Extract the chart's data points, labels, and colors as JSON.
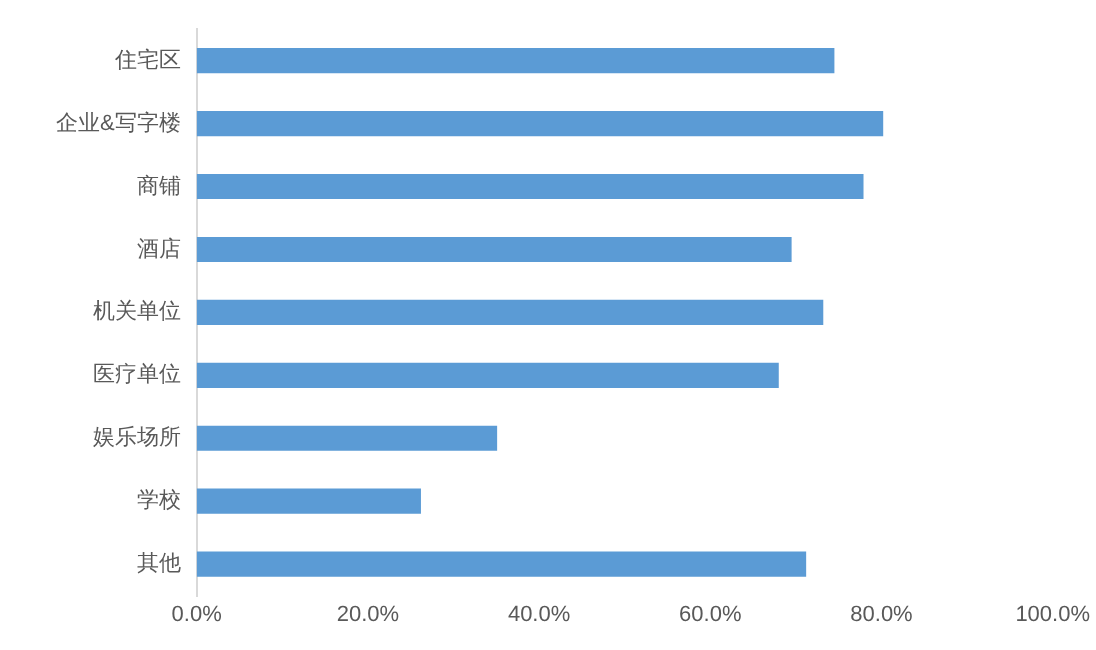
{
  "chart_data": {
    "type": "bar",
    "orientation": "horizontal",
    "categories": [
      "住宅区",
      "企业&写字楼",
      "商铺",
      "酒店",
      "机关单位",
      "医疗单位",
      "娱乐场所",
      "学校",
      "其他"
    ],
    "values": [
      74.5,
      80.2,
      77.9,
      69.5,
      73.2,
      68.0,
      35.1,
      26.2,
      71.2
    ],
    "color": "#5b9bd5",
    "xlim": [
      0,
      100
    ],
    "xticks": [
      {
        "value": 0,
        "label": "0.0%"
      },
      {
        "value": 20,
        "label": "20.0%"
      },
      {
        "value": 40,
        "label": "40.0%"
      },
      {
        "value": 60,
        "label": "60.0%"
      },
      {
        "value": 80,
        "label": "80.0%"
      },
      {
        "value": 100,
        "label": "100.0%"
      }
    ],
    "grid": false,
    "legend": false
  }
}
